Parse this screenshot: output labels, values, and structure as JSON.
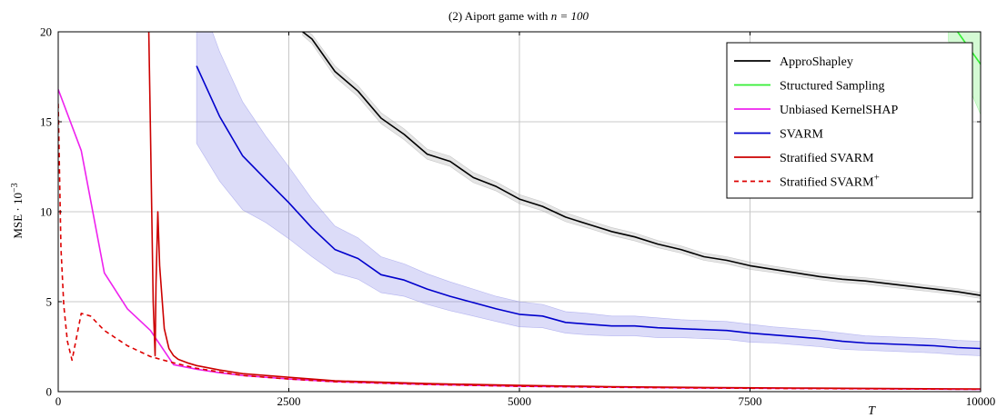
{
  "chart_data": {
    "type": "line",
    "title": "(2) Aiport game with n = 100",
    "title_prefix": "(2) Aiport game with ",
    "title_math": "n = 100",
    "xlabel": "T",
    "ylabel": "MSE · 10",
    "ylabel_exp": "−3",
    "xlim": [
      0,
      10000
    ],
    "ylim": [
      0,
      20
    ],
    "xticks": [
      0,
      2500,
      5000,
      7500,
      10000
    ],
    "xtick_labels": [
      "0",
      "2500",
      "5000",
      "7500",
      "10000"
    ],
    "yticks": [
      0,
      5,
      10,
      15,
      20
    ],
    "ytick_labels": [
      "0",
      "5",
      "10",
      "15",
      "20"
    ],
    "grid": true,
    "legend_position": "top-right",
    "series": [
      {
        "name": "ApproShapley",
        "color": "#000000",
        "dash": false,
        "band": true,
        "band_color": "#a0a0a0",
        "x": [
          2650,
          2750,
          3000,
          3250,
          3500,
          3750,
          4000,
          4250,
          4500,
          4750,
          5000,
          5250,
          5500,
          5750,
          6000,
          6250,
          6500,
          6750,
          7000,
          7250,
          7500,
          7750,
          8000,
          8250,
          8500,
          8750,
          9000,
          9250,
          9500,
          9750,
          10000
        ],
        "y": [
          20.0,
          19.6,
          17.8,
          16.7,
          15.2,
          14.3,
          13.2,
          12.8,
          11.9,
          11.4,
          10.7,
          10.3,
          9.7,
          9.3,
          8.9,
          8.6,
          8.2,
          7.9,
          7.5,
          7.3,
          7.0,
          6.8,
          6.6,
          6.4,
          6.25,
          6.15,
          6.0,
          5.85,
          5.7,
          5.55,
          5.35
        ],
        "band_width": [
          0.2,
          0.25,
          0.3,
          0.3,
          0.3,
          0.3,
          0.28,
          0.28,
          0.28,
          0.25,
          0.25,
          0.25,
          0.25,
          0.22,
          0.22,
          0.22,
          0.2,
          0.2,
          0.2,
          0.2,
          0.2,
          0.18,
          0.18,
          0.18,
          0.18,
          0.18,
          0.18,
          0.18,
          0.17,
          0.17,
          0.17
        ]
      },
      {
        "name": "Structured Sampling",
        "color": "#33ee33",
        "dash": false,
        "band": true,
        "band_color": "#66ee66",
        "x": [
          9650,
          9750,
          10000
        ],
        "y": [
          20.8,
          20.0,
          18.2
        ],
        "band_width": [
          1.3,
          1.6,
          2.8
        ]
      },
      {
        "name": "Unbiased KernelSHAP",
        "color": "#ee22ee",
        "dash": false,
        "band": false,
        "x": [
          0,
          250,
          500,
          750,
          1000,
          1250,
          1500,
          1750,
          2000,
          2500,
          3000,
          4000,
          5000,
          6000,
          7000,
          8000,
          9000,
          10000
        ],
        "y": [
          16.8,
          13.4,
          6.6,
          4.6,
          3.4,
          1.5,
          1.25,
          1.05,
          0.9,
          0.7,
          0.55,
          0.4,
          0.3,
          0.25,
          0.2,
          0.18,
          0.15,
          0.13
        ]
      },
      {
        "name": "SVARM",
        "color": "#0000cc",
        "dash": false,
        "band": true,
        "band_color": "#8080e6",
        "x": [
          1500,
          1750,
          2000,
          2250,
          2500,
          2750,
          3000,
          3250,
          3500,
          3750,
          4000,
          4250,
          4500,
          4750,
          5000,
          5250,
          5500,
          5750,
          6000,
          6250,
          6500,
          6750,
          7000,
          7250,
          7500,
          7750,
          8000,
          8250,
          8500,
          8750,
          9000,
          9250,
          9500,
          9750,
          10000
        ],
        "y": [
          18.1,
          15.3,
          13.1,
          11.8,
          10.5,
          9.1,
          7.9,
          7.4,
          6.5,
          6.2,
          5.7,
          5.3,
          4.95,
          4.6,
          4.3,
          4.2,
          3.85,
          3.75,
          3.65,
          3.65,
          3.55,
          3.5,
          3.45,
          3.4,
          3.25,
          3.15,
          3.05,
          2.95,
          2.8,
          2.7,
          2.65,
          2.6,
          2.55,
          2.45,
          2.4
        ],
        "band_width": [
          4.3,
          3.6,
          3.0,
          2.4,
          2.0,
          1.6,
          1.3,
          1.15,
          1.0,
          0.9,
          0.85,
          0.8,
          0.75,
          0.7,
          0.7,
          0.65,
          0.6,
          0.6,
          0.55,
          0.55,
          0.55,
          0.5,
          0.5,
          0.5,
          0.5,
          0.45,
          0.45,
          0.45,
          0.45,
          0.4,
          0.4,
          0.4,
          0.4,
          0.4,
          0.4
        ]
      },
      {
        "name": "Stratified SVARM",
        "color": "#cc0000",
        "dash": false,
        "band": false,
        "x": [
          980,
          1000,
          1030,
          1050,
          1060,
          1080,
          1100,
          1150,
          1200,
          1250,
          1300,
          1400,
          1500,
          1750,
          2000,
          2500,
          3000,
          4000,
          5000,
          6000,
          7000,
          8000,
          9000,
          10000
        ],
        "y": [
          20.5,
          14.5,
          5.0,
          2.0,
          6.0,
          10.0,
          7.0,
          3.5,
          2.4,
          2.0,
          1.8,
          1.6,
          1.45,
          1.2,
          1.0,
          0.8,
          0.6,
          0.45,
          0.35,
          0.28,
          0.23,
          0.2,
          0.17,
          0.15
        ]
      },
      {
        "name": "Stratified SVARM",
        "name_suffix": "+",
        "color": "#dd0000",
        "dash": true,
        "band": false,
        "x": [
          0,
          30,
          60,
          100,
          150,
          250,
          350,
          500,
          750,
          1000,
          1250,
          1500,
          2000,
          2500,
          3000,
          4000,
          5000,
          6000,
          7000,
          8000,
          9000,
          10000
        ],
        "y": [
          16.0,
          8.0,
          4.8,
          2.8,
          1.75,
          4.35,
          4.2,
          3.4,
          2.55,
          1.95,
          1.6,
          1.3,
          0.9,
          0.7,
          0.55,
          0.4,
          0.3,
          0.24,
          0.2,
          0.17,
          0.15,
          0.13
        ]
      }
    ]
  }
}
